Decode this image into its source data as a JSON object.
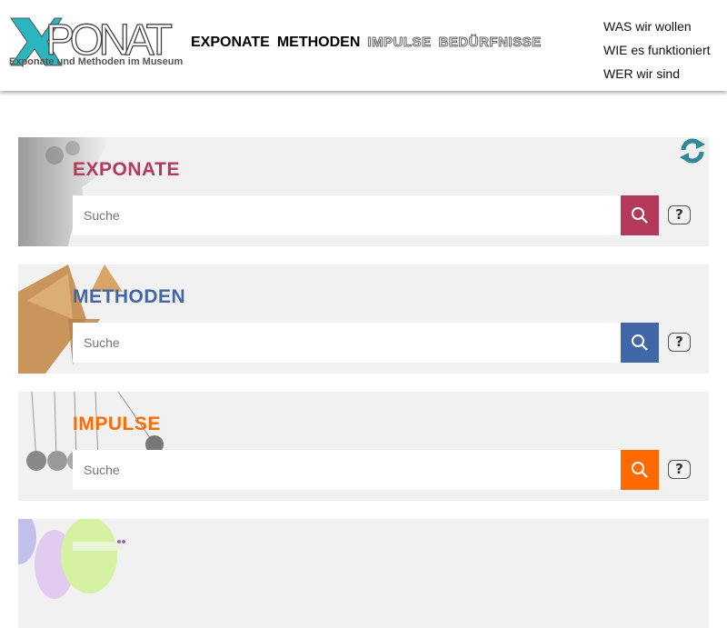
{
  "header": {
    "logo_text": "XPONAT",
    "logo_subtitle": "Exponate und Methoden im Museum",
    "nav": [
      {
        "label": "EXPONATE",
        "style": "solid"
      },
      {
        "label": "METHODEN",
        "style": "solid"
      },
      {
        "label": "IMPULSE",
        "style": "outline"
      },
      {
        "label": "BEDÜRFNISSE",
        "style": "outline"
      }
    ],
    "right_nav": [
      "WAS wir wollen",
      "WIE es funktioniert",
      "WER wir sind"
    ]
  },
  "sections": [
    {
      "title": "EXPONATE",
      "placeholder": "Suche",
      "color": "#b5395a",
      "help": "?"
    },
    {
      "title": "METHODEN",
      "placeholder": "Suche",
      "color": "#4267a8",
      "help": "?"
    },
    {
      "title": "IMPULSE",
      "placeholder": "Suche",
      "color": "#ff6a00",
      "help": "?"
    }
  ],
  "icons": {
    "refresh": "refresh-icon",
    "search": "search-icon",
    "help": "help-icon"
  },
  "colors": {
    "refresh": "#2e8a9a",
    "logo_accent": "#2bb5bf"
  }
}
